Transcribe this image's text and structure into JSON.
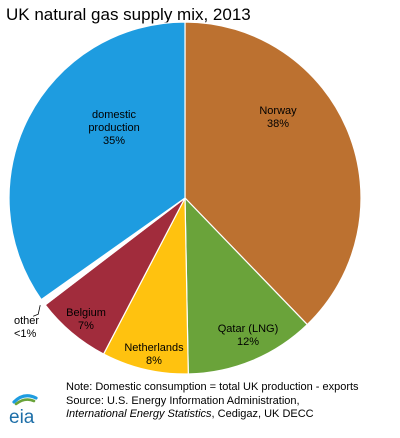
{
  "chart_data": {
    "type": "pie",
    "title": "UK natural gas supply mix, 2013",
    "slices": [
      {
        "label_lines": [
          "Norway",
          "38%"
        ],
        "value": 38,
        "color": "#BC7130"
      },
      {
        "label_lines": [
          "Qatar (LNG)",
          "12%"
        ],
        "value": 12,
        "color": "#6AA33A"
      },
      {
        "label_lines": [
          "Netherlands",
          "8%"
        ],
        "value": 8,
        "color": "#FFC20F"
      },
      {
        "label_lines": [
          "Belgium",
          "7%"
        ],
        "value": 7,
        "color": "#A12C3C"
      },
      {
        "label_lines": [
          "other",
          "<1%"
        ],
        "value": 0.6,
        "color": "#ffffff"
      },
      {
        "label_lines": [
          "domestic",
          "production",
          "35%"
        ],
        "value": 35,
        "color": "#1E9CE0"
      }
    ],
    "legend": "none"
  },
  "footer": {
    "logo_text": "eia",
    "note_line1": "Note: Domestic consumption = total UK production - exports",
    "note_line2": "Source: U.S. Energy Information  Administration,",
    "note_line3_italic": "International Energy Statistics",
    "note_line3_rest": ", Cedigaz, UK DECC"
  }
}
